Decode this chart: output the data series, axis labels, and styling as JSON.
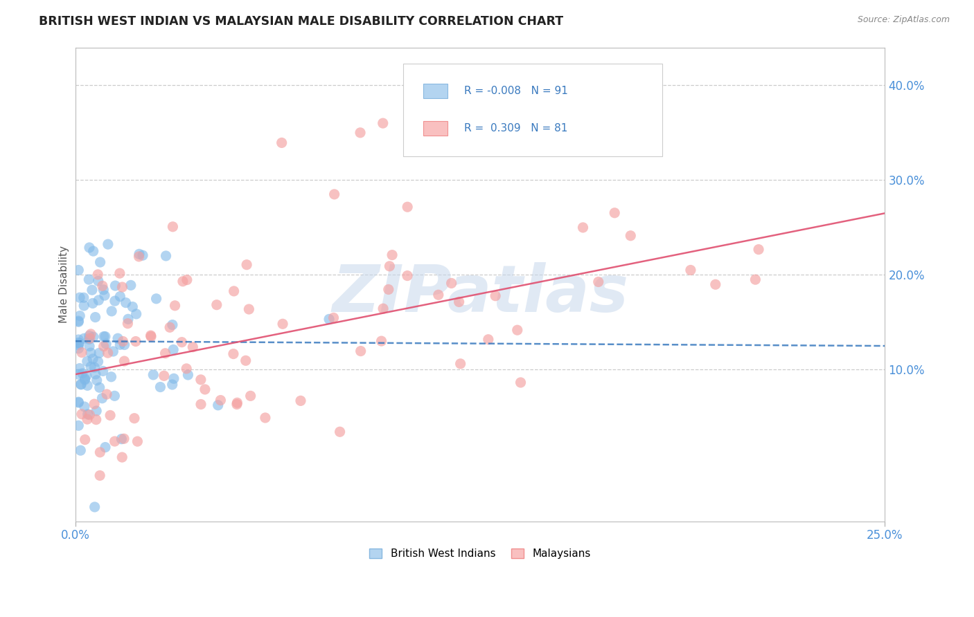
{
  "title": "BRITISH WEST INDIAN VS MALAYSIAN MALE DISABILITY CORRELATION CHART",
  "source": "Source: ZipAtlas.com",
  "ylabel": "Male Disability",
  "right_yticks": [
    "40.0%",
    "30.0%",
    "20.0%",
    "10.0%"
  ],
  "right_ytick_vals": [
    0.4,
    0.3,
    0.2,
    0.1
  ],
  "xmin": 0.0,
  "xmax": 0.25,
  "ymin": -0.06,
  "ymax": 0.44,
  "series1_color": "#7fb8e8",
  "series2_color": "#f4a0a0",
  "trend1_color": "#3a7abf",
  "trend2_color": "#e05070",
  "R1": -0.008,
  "N1": 91,
  "R2": 0.309,
  "N2": 81,
  "legend1_label": "British West Indians",
  "legend2_label": "Malaysians",
  "watermark": "ZIPatlas"
}
